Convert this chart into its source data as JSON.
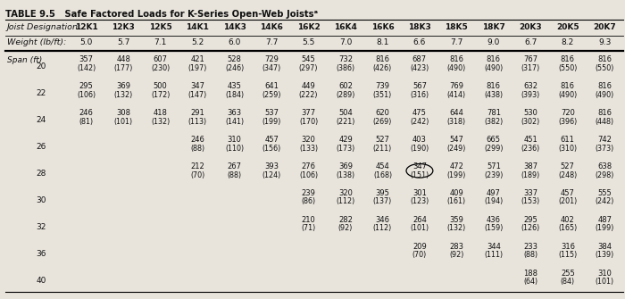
{
  "title": "TABLE 9.5   Safe Factored Loads for K-Series Open-Web Joistsᵃ",
  "col_headers": [
    "Joist Designation:",
    "12K1",
    "12K3",
    "12K5",
    "14K1",
    "14K3",
    "14K6",
    "16K2",
    "16K4",
    "16K6",
    "18K3",
    "18K5",
    "18K7",
    "20K3",
    "20K5",
    "20K7"
  ],
  "weight_row": [
    "Weight (lb/ft):",
    "5.0",
    "5.7",
    "7.1",
    "5.2",
    "6.0",
    "7.7",
    "5.5",
    "7.0",
    "8.1",
    "6.6",
    "7.7",
    "9.0",
    "6.7",
    "8.2",
    "9.3"
  ],
  "span_label": "Span (ft)",
  "spans": [
    20,
    22,
    24,
    26,
    28,
    30,
    32,
    36,
    40
  ],
  "data": {
    "20": {
      "top": [
        "357",
        "448",
        "607",
        "421",
        "528",
        "729",
        "545",
        "732",
        "816",
        "687",
        "816",
        "816",
        "767",
        "816",
        "816"
      ],
      "bottom": [
        "(142)",
        "(177)",
        "(230)",
        "(197)",
        "(246)",
        "(347)",
        "(297)",
        "(386)",
        "(426)",
        "(423)",
        "(490)",
        "(490)",
        "(317)",
        "(550)",
        "(550)"
      ]
    },
    "22": {
      "top": [
        "295",
        "369",
        "500",
        "347",
        "435",
        "641",
        "449",
        "602",
        "739",
        "567",
        "769",
        "816",
        "632",
        "816",
        "816"
      ],
      "bottom": [
        "(106)",
        "(132)",
        "(172)",
        "(147)",
        "(184)",
        "(259)",
        "(222)",
        "(289)",
        "(351)",
        "(316)",
        "(414)",
        "(438)",
        "(393)",
        "(490)",
        "(490)"
      ]
    },
    "24": {
      "top": [
        "246",
        "308",
        "418",
        "291",
        "363",
        "537",
        "377",
        "504",
        "620",
        "475",
        "644",
        "781",
        "530",
        "720",
        "816"
      ],
      "bottom": [
        "(81)",
        "(101)",
        "(132)",
        "(113)",
        "(141)",
        "(199)",
        "(170)",
        "(221)",
        "(269)",
        "(242)",
        "(318)",
        "(382)",
        "(302)",
        "(396)",
        "(448)"
      ]
    },
    "26": {
      "top": [
        "",
        "",
        "",
        "246",
        "310",
        "457",
        "320",
        "429",
        "527",
        "403",
        "547",
        "665",
        "451",
        "611",
        "742"
      ],
      "bottom": [
        "",
        "",
        "",
        "(88)",
        "(110)",
        "(156)",
        "(133)",
        "(173)",
        "(211)",
        "(190)",
        "(249)",
        "(299)",
        "(236)",
        "(310)",
        "(373)"
      ]
    },
    "28": {
      "top": [
        "",
        "",
        "",
        "212",
        "267",
        "393",
        "276",
        "369",
        "454",
        "347",
        "472",
        "571",
        "387",
        "527",
        "638"
      ],
      "bottom": [
        "",
        "",
        "",
        "(70)",
        "(88)",
        "(124)",
        "(106)",
        "(138)",
        "(168)",
        "(151)",
        "(199)",
        "(239)",
        "(189)",
        "(248)",
        "(298)"
      ]
    },
    "30": {
      "top": [
        "",
        "",
        "",
        "",
        "",
        "",
        "239",
        "320",
        "395",
        "301",
        "409",
        "497",
        "337",
        "457",
        "555"
      ],
      "bottom": [
        "",
        "",
        "",
        "",
        "",
        "",
        "(86)",
        "(112)",
        "(137)",
        "(123)",
        "(161)",
        "(194)",
        "(153)",
        "(201)",
        "(242)"
      ]
    },
    "32": {
      "top": [
        "",
        "",
        "",
        "",
        "",
        "",
        "210",
        "282",
        "346",
        "264",
        "359",
        "436",
        "295",
        "402",
        "487"
      ],
      "bottom": [
        "",
        "",
        "",
        "",
        "",
        "",
        "(71)",
        "(92)",
        "(112)",
        "(101)",
        "(132)",
        "(159)",
        "(126)",
        "(165)",
        "(199)"
      ]
    },
    "36": {
      "top": [
        "",
        "",
        "",
        "",
        "",
        "",
        "",
        "",
        "",
        "209",
        "283",
        "344",
        "233",
        "316",
        "384"
      ],
      "bottom": [
        "",
        "",
        "",
        "",
        "",
        "",
        "",
        "",
        "",
        "(70)",
        "(92)",
        "(111)",
        "(88)",
        "(115)",
        "(139)"
      ]
    },
    "40": {
      "top": [
        "",
        "",
        "",
        "",
        "",
        "",
        "",
        "",
        "",
        "",
        "",
        "",
        "188",
        "255",
        "310"
      ],
      "bottom": [
        "",
        "",
        "",
        "",
        "",
        "",
        "",
        "",
        "",
        "",
        "",
        "",
        "(64)",
        "(84)",
        "(101)"
      ]
    }
  },
  "circle_cells": [
    {
      "span": "28",
      "col_idx": 9
    }
  ],
  "bg_color": "#e8e4dc",
  "text_color": "#111111"
}
